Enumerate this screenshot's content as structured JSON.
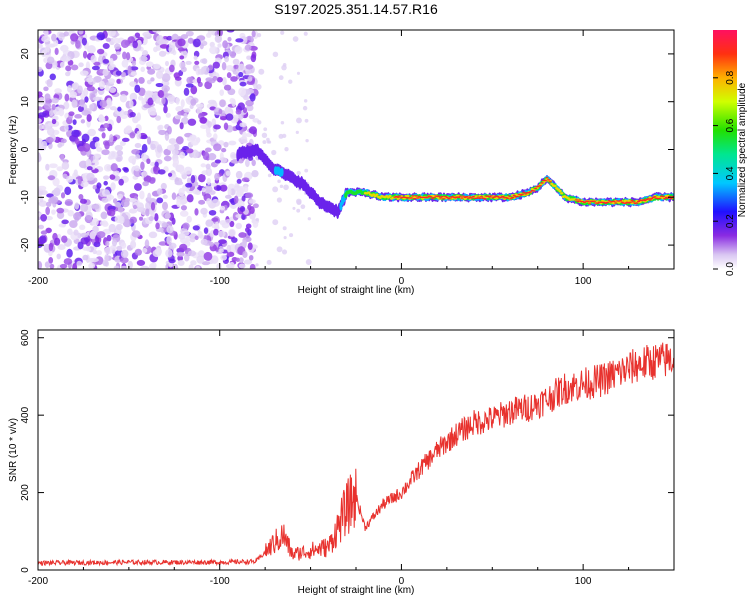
{
  "figure": {
    "title": "S197.2025.351.14.57.R16"
  },
  "colors": {
    "line": "#e8322e",
    "axis": "#000000"
  },
  "colorbar": {
    "label": "Normalized spectral amplitude",
    "ticks": [
      "0.0",
      "0.2",
      "0.4",
      "0.6",
      "0.8"
    ],
    "tick_values": [
      0.0,
      0.2,
      0.4,
      0.6,
      0.8
    ],
    "range": [
      0,
      1
    ],
    "colormap": "rainbow"
  },
  "chart_data": [
    {
      "type": "heatmap",
      "name": "spectrogram",
      "title": "S197.2025.351.14.57.R16",
      "xlabel": "Height of straight line (km)",
      "ylabel": "Frequency (Hz)",
      "xlim": [
        -200,
        150
      ],
      "ylim": [
        -25,
        25
      ],
      "xticks": [
        -200,
        -100,
        0,
        100
      ],
      "xtick_labels": [
        "-200",
        "-100",
        "0",
        "100"
      ],
      "yticks": [
        -20,
        -10,
        0,
        10,
        20
      ],
      "ytick_labels": [
        "-20",
        "-10",
        "0",
        "10",
        "20"
      ],
      "signal_track": {
        "x": [
          -90,
          -80,
          -75,
          -70,
          -65,
          -60,
          -55,
          -50,
          -45,
          -40,
          -35,
          -30,
          -20,
          -10,
          0,
          10,
          20,
          30,
          40,
          50,
          60,
          70,
          75,
          80,
          85,
          90,
          100,
          110,
          120,
          130,
          140,
          150
        ],
        "freq_hz": [
          -1,
          0,
          -2,
          -4,
          -5,
          -6,
          -7,
          -9,
          -11,
          -12,
          -13,
          -9,
          -9,
          -10,
          -10,
          -10,
          -10,
          -10,
          -10,
          -10,
          -10,
          -9,
          -8,
          -6,
          -8,
          -10,
          -11,
          -11,
          -11,
          -11,
          -10,
          -10
        ],
        "amplitude": [
          0.15,
          0.2,
          0.25,
          0.3,
          0.3,
          0.28,
          0.27,
          0.25,
          0.25,
          0.25,
          0.2,
          0.6,
          0.7,
          0.85,
          0.9,
          0.9,
          0.9,
          0.9,
          0.9,
          0.9,
          0.9,
          0.9,
          0.9,
          1.0,
          0.7,
          0.85,
          0.9,
          0.9,
          0.9,
          0.9,
          0.9,
          0.9
        ]
      },
      "noise_region_x": [
        -200,
        -80
      ]
    },
    {
      "type": "line",
      "name": "snr",
      "xlabel": "Height of straight line (km)",
      "ylabel": "SNR (10 * v/v)",
      "xlim": [
        -200,
        150
      ],
      "ylim": [
        0,
        620
      ],
      "xticks": [
        -200,
        -100,
        0,
        100
      ],
      "xtick_labels": [
        "-200",
        "-100",
        "0",
        "100"
      ],
      "yticks": [
        0,
        200,
        400,
        600
      ],
      "ytick_labels": [
        "0",
        "200",
        "400",
        "600"
      ],
      "series": [
        {
          "name": "SNR",
          "x": [
            -200,
            -150,
            -100,
            -80,
            -70,
            -65,
            -60,
            -50,
            -40,
            -30,
            -25,
            -20,
            -10,
            0,
            10,
            20,
            30,
            40,
            50,
            60,
            70,
            80,
            90,
            100,
            110,
            120,
            130,
            140,
            150
          ],
          "values": [
            18,
            20,
            20,
            22,
            70,
            90,
            40,
            50,
            60,
            160,
            190,
            110,
            170,
            200,
            260,
            310,
            350,
            380,
            390,
            410,
            420,
            440,
            470,
            480,
            490,
            510,
            530,
            540,
            545
          ]
        }
      ]
    }
  ]
}
